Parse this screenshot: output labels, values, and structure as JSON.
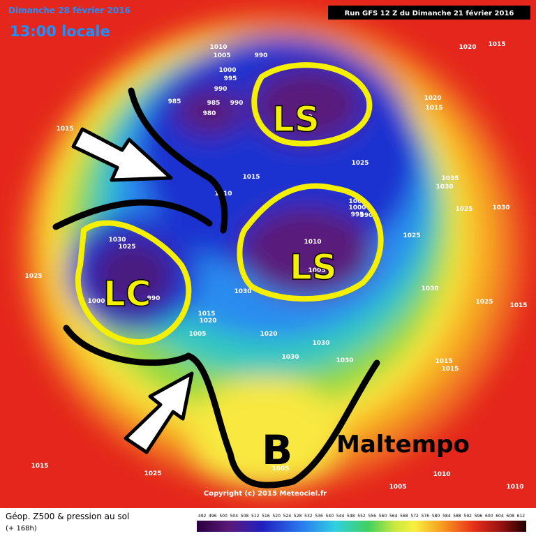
{
  "header": {
    "date": "Dimanche 28 février 2016",
    "time": "13:00 locale",
    "run": "Run GFS 12 Z du Dimanche 21 février 2016"
  },
  "annotations": {
    "highs_lows": [
      "LS",
      "LS",
      "LC"
    ],
    "low_marker": "B",
    "note": "Maltempo"
  },
  "copyright": "Copyright (c) 2015 Meteociel.fr",
  "footer": {
    "title": "Géop. Z500 & pression au sol",
    "lead": "(+ 168h)",
    "scale": [
      492,
      496,
      500,
      504,
      508,
      512,
      516,
      520,
      524,
      528,
      532,
      536,
      540,
      544,
      548,
      552,
      556,
      560,
      564,
      568,
      572,
      576,
      580,
      584,
      588,
      592,
      596,
      600,
      604,
      608,
      612
    ]
  },
  "isobar_labels": [
    "1010",
    "1005",
    "990",
    "1000",
    "995",
    "990",
    "985",
    "985",
    "990",
    "980",
    "990",
    "1020",
    "1015",
    "1020",
    "1015",
    "1015",
    "1020",
    "1025",
    "1035",
    "1030",
    "1015",
    "1010",
    "1025",
    "1030",
    "1005",
    "1000",
    "995",
    "990",
    "1025",
    "1010",
    "1030",
    "1025",
    "1005",
    "1025",
    "1030",
    "1025",
    "1015",
    "1000",
    "990",
    "1030",
    "1015",
    "1020",
    "1005",
    "1020",
    "1030",
    "1030",
    "1030",
    "1015",
    "1015",
    "1005",
    "1015",
    "1025",
    "1010",
    "1010",
    "1005"
  ]
}
